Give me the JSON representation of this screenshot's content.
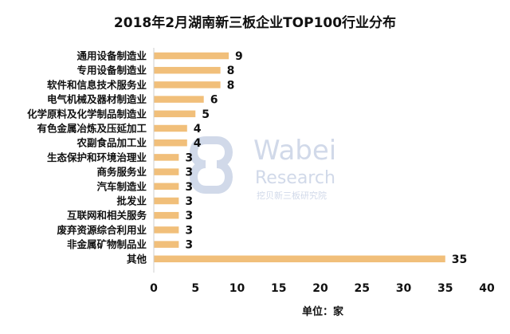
{
  "chart_data": {
    "type": "bar",
    "orientation": "horizontal",
    "title": "2018年2月湖南新三板企业TOP100行业分布",
    "xlabel": "单位：家",
    "ylabel": "",
    "xlim": [
      0,
      40
    ],
    "x_ticks": [
      0,
      5,
      10,
      15,
      20,
      25,
      30,
      35,
      40
    ],
    "grid": false,
    "legend": "none",
    "bar_color": "#f1bf7a",
    "categories": [
      "通用设备制造业",
      "专用设备制造业",
      "软件和信息技术服务业",
      "电气机械及器材制造业",
      "化学原料及化学制品制造业",
      "有色金属冶炼及压延加工",
      "农副食品加工业",
      "生态保护和环境治理业",
      "商务服务业",
      "汽车制造业",
      "批发业",
      "互联网和相关服务",
      "废弃资源综合利用业",
      "非金属矿物制品业",
      "其他"
    ],
    "values": [
      9,
      8,
      8,
      6,
      5,
      4,
      4,
      3,
      3,
      3,
      3,
      3,
      3,
      3,
      35
    ]
  },
  "watermark": {
    "line1": "Wabei",
    "line2": "Research",
    "line3": "挖贝新三板研究院"
  }
}
